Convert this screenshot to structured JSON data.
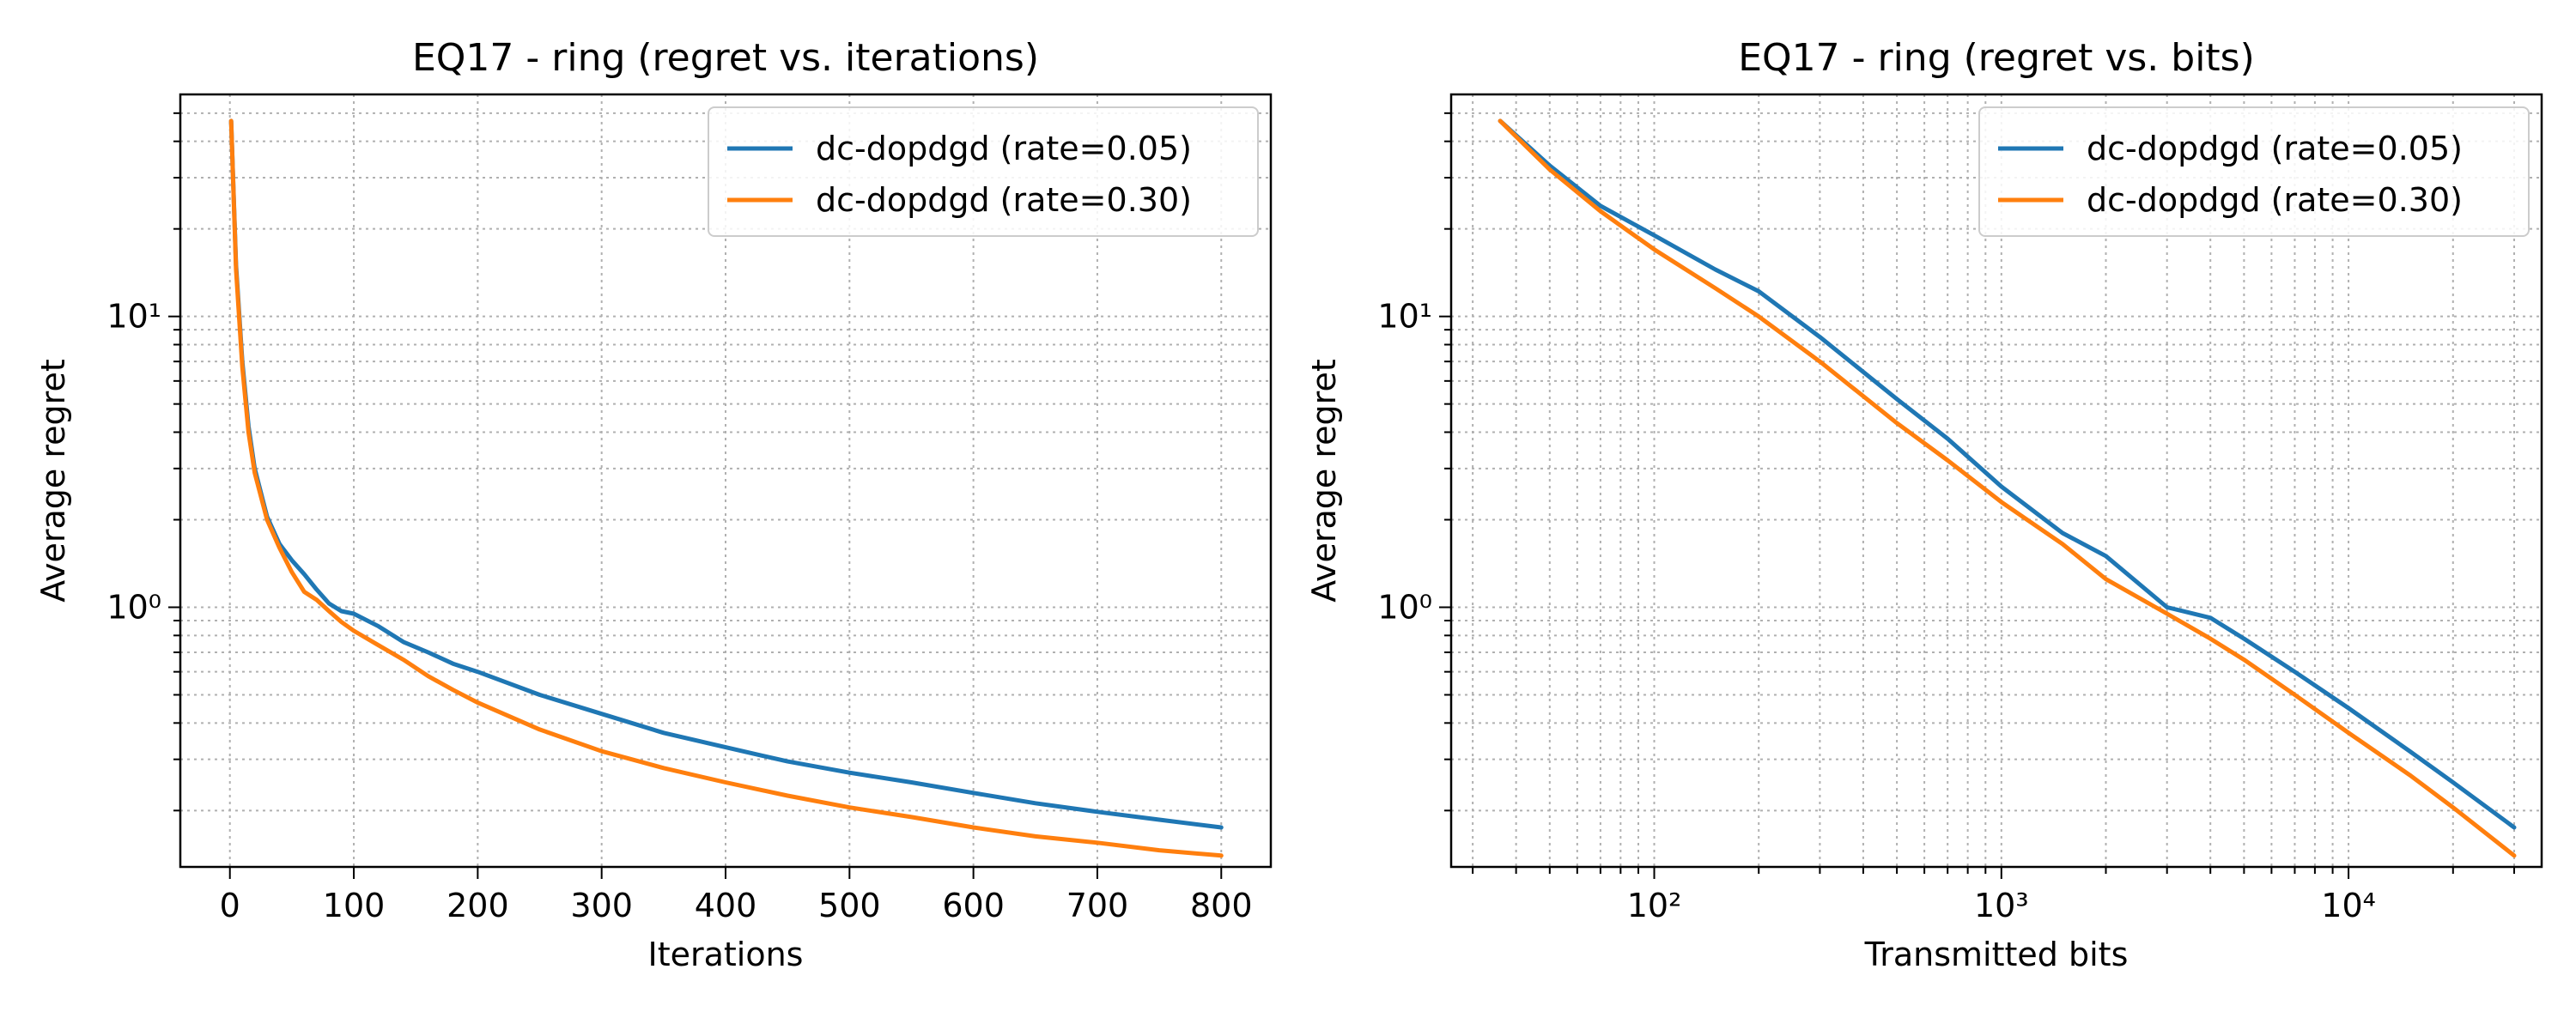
{
  "colors": {
    "rate_005": "#1f77b4",
    "rate_030": "#ff7f0e"
  },
  "chart_data": [
    {
      "type": "line",
      "title": "EQ17 - ring (regret vs. iterations)",
      "xlabel": "Iterations",
      "ylabel": "Average regret",
      "xscale": "linear",
      "yscale": "log",
      "xlim": [
        -40,
        840
      ],
      "ylim": [
        0.128,
        58
      ],
      "xticks": [
        0,
        100,
        200,
        300,
        400,
        500,
        600,
        700,
        800
      ],
      "xtick_labels": [
        "0",
        "100",
        "200",
        "300",
        "400",
        "500",
        "600",
        "700",
        "800"
      ],
      "yticks": [
        1,
        10
      ],
      "ytick_labels": [
        "10⁰",
        "10¹"
      ],
      "grid": true,
      "legend_position": "top-right",
      "series": [
        {
          "name": "dc-dopdgd (rate=0.05)",
          "color": "#1f77b4",
          "x": [
            1,
            5,
            10,
            15,
            20,
            30,
            40,
            50,
            60,
            70,
            80,
            90,
            100,
            120,
            140,
            160,
            180,
            200,
            250,
            300,
            350,
            400,
            450,
            500,
            550,
            600,
            650,
            700,
            750,
            800
          ],
          "y": [
            47,
            15,
            7.0,
            4.2,
            3.0,
            2.05,
            1.65,
            1.45,
            1.3,
            1.15,
            1.03,
            0.97,
            0.95,
            0.86,
            0.76,
            0.7,
            0.64,
            0.6,
            0.5,
            0.43,
            0.37,
            0.33,
            0.295,
            0.27,
            0.25,
            0.23,
            0.212,
            0.198,
            0.186,
            0.175
          ]
        },
        {
          "name": "dc-dopdgd (rate=0.30)",
          "color": "#ff7f0e",
          "x": [
            1,
            5,
            10,
            15,
            20,
            30,
            40,
            50,
            60,
            70,
            80,
            90,
            100,
            120,
            140,
            160,
            180,
            200,
            250,
            300,
            350,
            400,
            450,
            500,
            550,
            600,
            650,
            700,
            750,
            800
          ],
          "y": [
            47,
            14.5,
            6.7,
            4.0,
            2.9,
            2.0,
            1.6,
            1.32,
            1.13,
            1.06,
            0.97,
            0.89,
            0.83,
            0.74,
            0.66,
            0.58,
            0.52,
            0.47,
            0.38,
            0.32,
            0.28,
            0.25,
            0.225,
            0.205,
            0.19,
            0.175,
            0.163,
            0.155,
            0.146,
            0.14
          ]
        }
      ]
    },
    {
      "type": "line",
      "title": "EQ17 - ring (regret vs. bits)",
      "xlabel": "Transmitted bits",
      "ylabel": "Average regret",
      "xscale": "log",
      "yscale": "log",
      "xlim": [
        26,
        36000
      ],
      "ylim": [
        0.128,
        58
      ],
      "xticks": [
        100,
        1000,
        10000
      ],
      "xtick_labels": [
        "10²",
        "10³",
        "10⁴"
      ],
      "yticks": [
        1,
        10
      ],
      "ytick_labels": [
        "10⁰",
        "10¹"
      ],
      "grid": true,
      "legend_position": "top-right",
      "series": [
        {
          "name": "dc-dopdgd (rate=0.05)",
          "color": "#1f77b4",
          "x": [
            36,
            50,
            70,
            100,
            150,
            200,
            300,
            500,
            700,
            1000,
            1500,
            2000,
            3000,
            4000,
            5000,
            7000,
            10000,
            15000,
            20000,
            30000
          ],
          "y": [
            47,
            33,
            24,
            19,
            14.5,
            12.2,
            8.5,
            5.2,
            3.8,
            2.6,
            1.8,
            1.5,
            1.0,
            0.92,
            0.78,
            0.6,
            0.45,
            0.32,
            0.25,
            0.175
          ]
        },
        {
          "name": "dc-dopdgd (rate=0.30)",
          "color": "#ff7f0e",
          "x": [
            36,
            50,
            70,
            100,
            150,
            200,
            300,
            500,
            700,
            1000,
            1500,
            2000,
            3000,
            4000,
            5000,
            7000,
            10000,
            15000,
            20000,
            30000
          ],
          "y": [
            47,
            32,
            23,
            17,
            12.5,
            10,
            7.0,
            4.3,
            3.2,
            2.3,
            1.65,
            1.25,
            0.95,
            0.78,
            0.66,
            0.5,
            0.37,
            0.265,
            0.205,
            0.14
          ]
        }
      ]
    }
  ]
}
